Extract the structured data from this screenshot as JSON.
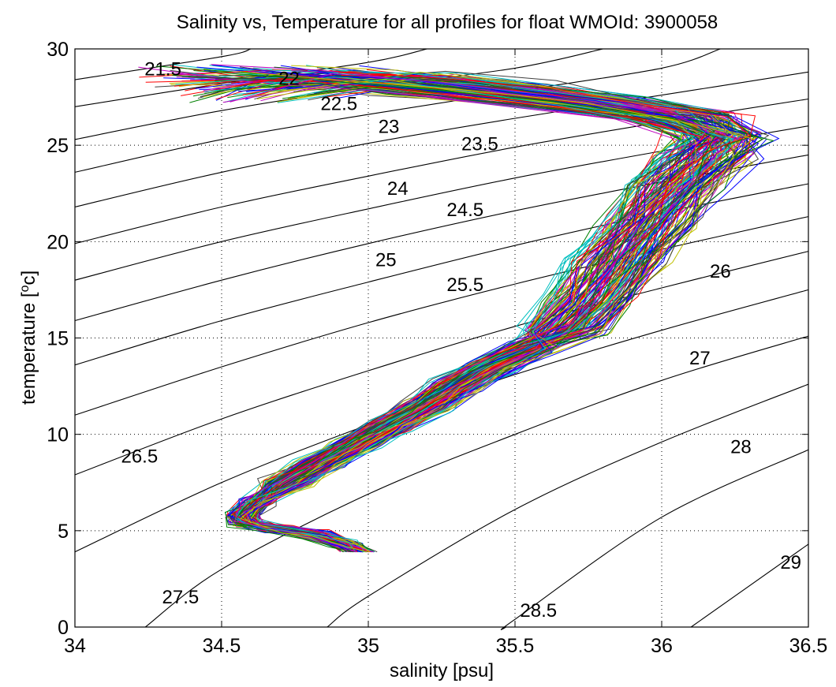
{
  "chart_data": {
    "type": "line",
    "title": "Salinity vs, Temperature for all profiles for float WMOId: 3900058",
    "xlabel": "salinity [psu]",
    "ylabel_main": "temperature [",
    "ylabel_sup": "o",
    "ylabel_end": "c]",
    "xlim": [
      34,
      36.5
    ],
    "ylim": [
      0,
      30
    ],
    "xticks": [
      34,
      34.5,
      35,
      35.5,
      36,
      36.5
    ],
    "xtick_labels": [
      "34",
      "34.5",
      "35",
      "35.5",
      "36",
      "36.5"
    ],
    "yticks": [
      0,
      5,
      10,
      15,
      20,
      25,
      30
    ],
    "ytick_labels": [
      "0",
      "5",
      "10",
      "15",
      "20",
      "25",
      "30"
    ],
    "grid": true,
    "profile_count": 160,
    "profile_colors": [
      "#0000ff",
      "#008000",
      "#ff0000",
      "#00bfbf",
      "#bf00bf",
      "#bfbf00",
      "#404040"
    ],
    "mean_profile": [
      {
        "t": 3.9,
        "s": 34.97
      },
      {
        "t": 4.3,
        "s": 34.92
      },
      {
        "t": 4.8,
        "s": 34.82
      },
      {
        "t": 5.1,
        "s": 34.68
      },
      {
        "t": 5.4,
        "s": 34.58
      },
      {
        "t": 5.8,
        "s": 34.57
      },
      {
        "t": 6.5,
        "s": 34.62
      },
      {
        "t": 7.5,
        "s": 34.72
      },
      {
        "t": 8.5,
        "s": 34.84
      },
      {
        "t": 9.5,
        "s": 34.96
      },
      {
        "t": 10.5,
        "s": 35.08
      },
      {
        "t": 11.5,
        "s": 35.2
      },
      {
        "t": 12.5,
        "s": 35.3
      },
      {
        "t": 13.5,
        "s": 35.42
      },
      {
        "t": 14.5,
        "s": 35.56
      },
      {
        "t": 15.5,
        "s": 35.67
      },
      {
        "t": 17,
        "s": 35.76
      },
      {
        "t": 19,
        "s": 35.85
      },
      {
        "t": 21,
        "s": 35.95
      },
      {
        "t": 23,
        "s": 36.05
      },
      {
        "t": 24.5,
        "s": 36.15
      },
      {
        "t": 25.5,
        "s": 36.2
      },
      {
        "t": 26.5,
        "s": 36.05
      },
      {
        "t": 27.3,
        "s": 35.7
      },
      {
        "t": 28,
        "s": 35.3
      },
      {
        "t": 28.5,
        "s": 34.95
      },
      {
        "t": 28.8,
        "s": 34.6
      }
    ],
    "density_contours": [
      {
        "label": "21.5",
        "points": [
          [
            34,
            28.4
          ],
          [
            34.5,
            29.6
          ],
          [
            34.6,
            30
          ]
        ],
        "label_at": [
          34.3,
          29
        ]
      },
      {
        "label": "22",
        "points": [
          [
            34,
            27
          ],
          [
            34.5,
            28.2
          ],
          [
            35,
            29.3
          ],
          [
            35.2,
            30
          ]
        ],
        "label_at": [
          34.73,
          28.5
        ]
      },
      {
        "label": "22.5",
        "points": [
          [
            34,
            25.3
          ],
          [
            34.5,
            26.8
          ],
          [
            35,
            28
          ],
          [
            35.5,
            29
          ],
          [
            35.8,
            30
          ]
        ],
        "label_at": [
          34.9,
          27.2
        ]
      },
      {
        "label": "23",
        "points": [
          [
            34,
            23.6
          ],
          [
            34.5,
            25.3
          ],
          [
            35,
            26.6
          ],
          [
            35.5,
            27.8
          ],
          [
            36,
            29
          ],
          [
            36.2,
            30
          ]
        ],
        "label_at": [
          35.07,
          26
        ]
      },
      {
        "label": "23.5",
        "points": [
          [
            34,
            21.8
          ],
          [
            34.5,
            23.6
          ],
          [
            35,
            25.1
          ],
          [
            35.5,
            26.4
          ],
          [
            36,
            27.6
          ],
          [
            36.5,
            28.8
          ]
        ],
        "label_at": [
          35.38,
          25.1
        ]
      },
      {
        "label": "24",
        "points": [
          [
            34,
            19.9
          ],
          [
            34.5,
            21.8
          ],
          [
            35,
            23.4
          ],
          [
            35.5,
            24.9
          ],
          [
            36,
            26.2
          ],
          [
            36.5,
            27.4
          ]
        ],
        "label_at": [
          35.1,
          22.8
        ]
      },
      {
        "label": "24.5",
        "points": [
          [
            34,
            18
          ],
          [
            34.5,
            20
          ],
          [
            35,
            21.7
          ],
          [
            35.5,
            23.3
          ],
          [
            36,
            24.7
          ],
          [
            36.5,
            26
          ]
        ],
        "label_at": [
          35.33,
          21.7
        ]
      },
      {
        "label": "25",
        "points": [
          [
            34,
            15.9
          ],
          [
            34.5,
            18
          ],
          [
            35,
            19.9
          ],
          [
            35.5,
            21.6
          ],
          [
            36,
            23.1
          ],
          [
            36.5,
            24.5
          ]
        ],
        "label_at": [
          35.06,
          19.1
        ]
      },
      {
        "label": "25.5",
        "points": [
          [
            34,
            13.6
          ],
          [
            34.5,
            15.9
          ],
          [
            35,
            17.9
          ],
          [
            35.5,
            19.8
          ],
          [
            36,
            21.5
          ],
          [
            36.5,
            23
          ]
        ],
        "label_at": [
          35.33,
          17.8
        ]
      },
      {
        "label": "26",
        "points": [
          [
            34,
            11
          ],
          [
            34.5,
            13.5
          ],
          [
            35,
            15.8
          ],
          [
            35.5,
            17.8
          ],
          [
            36,
            19.6
          ],
          [
            36.5,
            21.3
          ]
        ],
        "label_at": [
          36.2,
          18.5
        ]
      },
      {
        "label": "26.5",
        "points": [
          [
            34,
            7.9
          ],
          [
            34.5,
            10.8
          ],
          [
            35,
            13.3
          ],
          [
            35.5,
            15.6
          ],
          [
            36,
            17.6
          ],
          [
            36.5,
            19.5
          ]
        ],
        "label_at": [
          34.22,
          8.9
        ]
      },
      {
        "label": "27",
        "points": [
          [
            34,
            3.9
          ],
          [
            34.5,
            7.5
          ],
          [
            35,
            10.5
          ],
          [
            35.5,
            13.1
          ],
          [
            36,
            15.4
          ],
          [
            36.5,
            17.5
          ]
        ],
        "label_at": [
          36.13,
          14
        ]
      },
      {
        "label": "27.5",
        "points": [
          [
            34.24,
            0
          ],
          [
            34.5,
            3
          ],
          [
            35,
            6.9
          ],
          [
            35.5,
            10
          ],
          [
            36,
            12.8
          ],
          [
            36.5,
            15.1
          ]
        ],
        "label_at": [
          34.36,
          1.6
        ]
      },
      {
        "label": "28",
        "points": [
          [
            34.86,
            0
          ],
          [
            35,
            1.6
          ],
          [
            35.5,
            6.1
          ],
          [
            36,
            9.6
          ],
          [
            36.5,
            12.6
          ]
        ],
        "label_at": [
          36.27,
          9.4
        ]
      },
      {
        "label": "28.5",
        "points": [
          [
            35.47,
            0
          ],
          [
            35.5,
            0.4
          ],
          [
            36,
            5.7
          ],
          [
            36.5,
            9.2
          ]
        ],
        "label_at": [
          35.58,
          0.9
        ]
      },
      {
        "label": "29",
        "points": [
          [
            36.1,
            0
          ],
          [
            36.5,
            4.3
          ]
        ],
        "label_at": [
          36.44,
          3.4
        ]
      }
    ]
  }
}
